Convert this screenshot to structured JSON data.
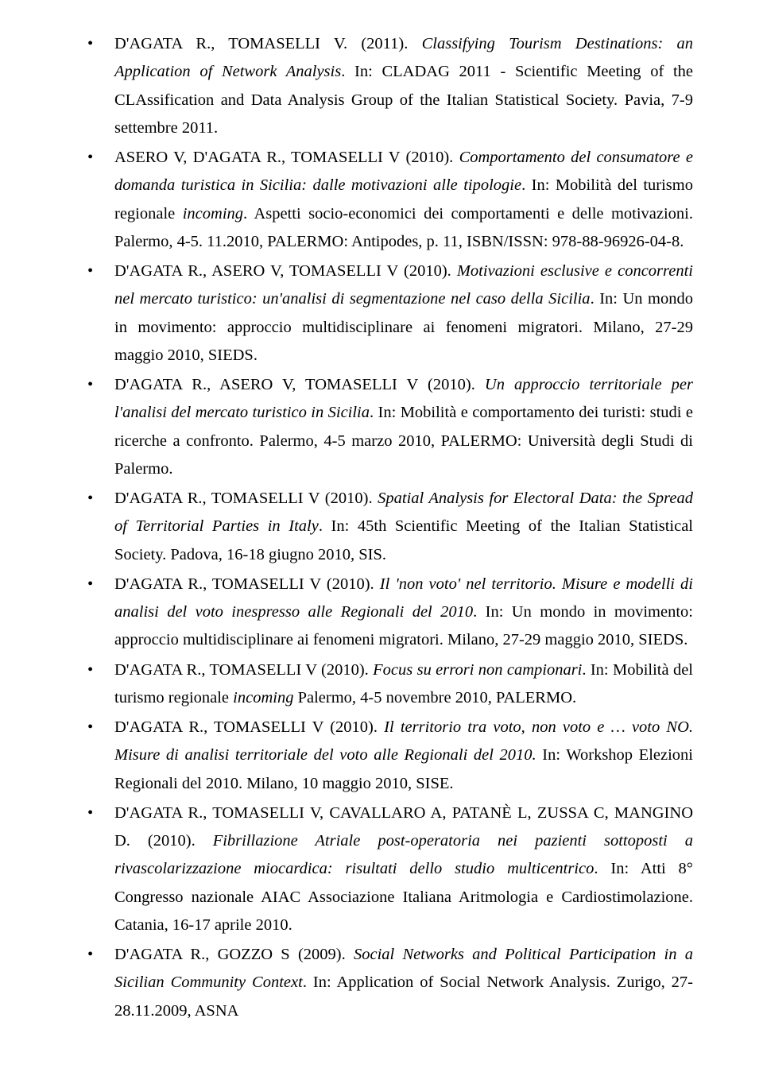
{
  "references": [
    {
      "segments": [
        {
          "text": "D'AGATA R., TOMASELLI V. (2011). "
        },
        {
          "text": "Classifying Tourism Destinations: an Application of Network Analysis",
          "italic": true
        },
        {
          "text": ". In: CLADAG 2011 - Scientific Meeting of the CLAssification and Data Analysis Group of the Italian Statistical Society. Pavia, 7-9 settembre 2011."
        }
      ]
    },
    {
      "segments": [
        {
          "text": "ASERO V, D'AGATA R., TOMASELLI V (2010). "
        },
        {
          "text": "Comportamento del consumatore e domanda turistica in Sicilia: dalle motivazioni alle tipologie",
          "italic": true
        },
        {
          "text": ". In: Mobilità del turismo regionale "
        },
        {
          "text": "incoming",
          "italic": true
        },
        {
          "text": ". Aspetti socio-economici dei comportamenti e delle motivazioni. Palermo, 4-5. 11.2010, PALERMO: Antipodes, p. 11, ISBN/ISSN: 978-88-96926-04-8."
        }
      ]
    },
    {
      "segments": [
        {
          "text": "D'AGATA R., ASERO V, TOMASELLI V (2010). "
        },
        {
          "text": "Motivazioni esclusive e concorrenti nel mercato turistico: un'analisi di segmentazione nel caso della Sicilia",
          "italic": true
        },
        {
          "text": ". In: Un mondo in movimento: approccio multidisciplinare ai fenomeni migratori. Milano, 27-29 maggio 2010, SIEDS."
        }
      ]
    },
    {
      "segments": [
        {
          "text": "D'AGATA R., ASERO V, TOMASELLI V (2010). "
        },
        {
          "text": "Un approccio territoriale per l'analisi del mercato turistico in Sicilia",
          "italic": true
        },
        {
          "text": ". In: Mobilità e comportamento dei turisti: studi e ricerche a confronto. Palermo, 4-5 marzo 2010, PALERMO: Università degli Studi di Palermo."
        }
      ]
    },
    {
      "segments": [
        {
          "text": "D'AGATA R., TOMASELLI V (2010). "
        },
        {
          "text": "Spatial Analysis for Electoral Data: the Spread of Territorial Parties in Italy",
          "italic": true
        },
        {
          "text": ". In: 45th Scientific Meeting of the Italian Statistical Society. Padova, 16-18 giugno 2010, SIS."
        }
      ]
    },
    {
      "segments": [
        {
          "text": "D'AGATA R., TOMASELLI V (2010). "
        },
        {
          "text": "Il 'non voto' nel territorio. Misure e modelli di analisi del voto inespresso alle Regionali del 2010",
          "italic": true
        },
        {
          "text": ". In: Un mondo in movimento: approccio multidisciplinare ai fenomeni migratori. Milano, 27-29 maggio 2010, SIEDS."
        }
      ]
    },
    {
      "segments": [
        {
          "text": "D'AGATA R., TOMASELLI V (2010). "
        },
        {
          "text": "Focus su errori non campionari",
          "italic": true
        },
        {
          "text": ". In: Mobilità del turismo regionale "
        },
        {
          "text": "incoming",
          "italic": true
        },
        {
          "text": " Palermo, 4-5 novembre 2010, PALERMO."
        }
      ]
    },
    {
      "segments": [
        {
          "text": "D'AGATA R., TOMASELLI V (2010). "
        },
        {
          "text": "Il territorio tra voto, non voto e … voto NO. Misure di analisi territoriale del voto alle Regionali del 2010.",
          "italic": true
        },
        {
          "text": " In: Workshop Elezioni Regionali del 2010. Milano, 10 maggio 2010, SISE."
        }
      ]
    },
    {
      "segments": [
        {
          "text": "D'AGATA R., TOMASELLI V, CAVALLARO A, PATANÈ L, ZUSSA C, MANGINO D. (2010). "
        },
        {
          "text": "Fibrillazione Atriale post-operatoria nei pazienti sottoposti a rivascolarizzazione miocardica: risultati dello studio multicentrico",
          "italic": true
        },
        {
          "text": ". In: Atti 8° Congresso nazionale AIAC Associazione Italiana Aritmologia e Cardiostimolazione. Catania, 16-17 aprile 2010."
        }
      ]
    },
    {
      "segments": [
        {
          "text": "D'AGATA R., GOZZO S (2009). "
        },
        {
          "text": "Social Networks and Political Participation in a Sicilian Community Context",
          "italic": true
        },
        {
          "text": ". In: Application of Social Network Analysis. Zurigo, 27-28.11.2009, ASNA"
        }
      ]
    }
  ]
}
